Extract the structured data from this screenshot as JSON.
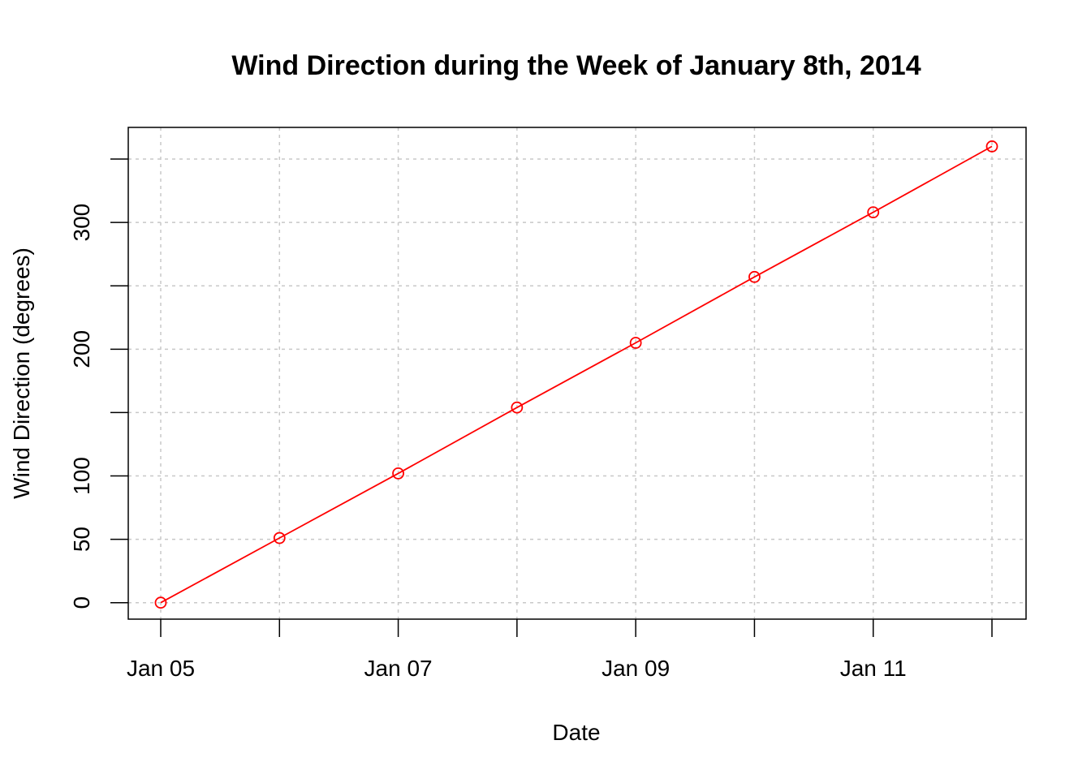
{
  "chart_data": {
    "type": "line",
    "title": "Wind Direction during the Week of January 8th, 2014",
    "xlabel": "Date",
    "ylabel": "Wind Direction (degrees)",
    "x": [
      "2014-01-05",
      "2014-01-06",
      "2014-01-07",
      "2014-01-08",
      "2014-01-09",
      "2014-01-10",
      "2014-01-11",
      "2014-01-12"
    ],
    "x_range": [
      "2014-01-05",
      "2014-01-12"
    ],
    "x_ticks": [
      {
        "value": "2014-01-05",
        "label": "Jan 05"
      },
      {
        "value": "2014-01-06",
        "label": ""
      },
      {
        "value": "2014-01-07",
        "label": "Jan 07"
      },
      {
        "value": "2014-01-08",
        "label": ""
      },
      {
        "value": "2014-01-09",
        "label": "Jan 09"
      },
      {
        "value": "2014-01-10",
        "label": ""
      },
      {
        "value": "2014-01-11",
        "label": "Jan 11"
      },
      {
        "value": "2014-01-12",
        "label": ""
      }
    ],
    "series": [
      {
        "values": [
          0,
          51,
          102,
          154,
          205,
          257,
          308,
          360
        ],
        "color": "#ff0000",
        "marker": "open-circle"
      }
    ],
    "ylim": [
      -13,
      375
    ],
    "y_ticks": [
      {
        "value": 0,
        "label": "0"
      },
      {
        "value": 50,
        "label": "50"
      },
      {
        "value": 100,
        "label": "100"
      },
      {
        "value": 150,
        "label": ""
      },
      {
        "value": 200,
        "label": "200"
      },
      {
        "value": 250,
        "label": ""
      },
      {
        "value": 300,
        "label": "300"
      },
      {
        "value": 350,
        "label": ""
      }
    ],
    "grid": true,
    "grid_style": "dotted",
    "grid_color": "#c8c8c8"
  }
}
